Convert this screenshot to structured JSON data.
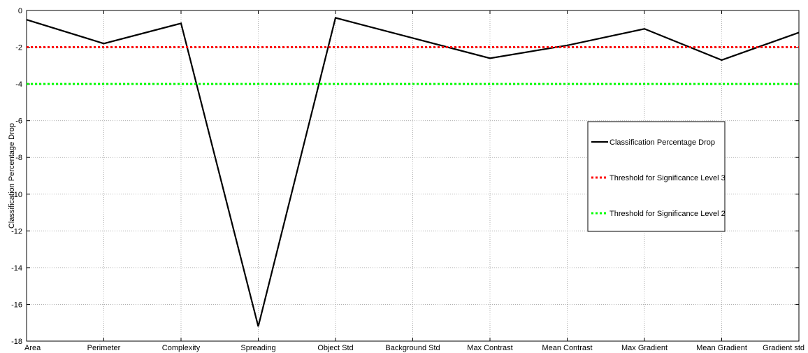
{
  "chart_data": {
    "type": "line",
    "title": "",
    "xlabel": "",
    "ylabel": "Classification Percentage Drop",
    "categories": [
      "Area",
      "Perimeter",
      "Complexity",
      "Spreading",
      "Object Std",
      "Background Std",
      "Max Contrast",
      "Mean Contrast",
      "Max Gradient",
      "Mean Gradient",
      "Gradient std"
    ],
    "ylim": [
      -18,
      0
    ],
    "yticks": [
      0,
      -2,
      -4,
      -6,
      -8,
      -10,
      -12,
      -14,
      -16,
      -18
    ],
    "grid": true,
    "legend_position": "right",
    "series": [
      {
        "name": "Classification Percentage Drop",
        "style": "solid",
        "color": "#000000",
        "values": [
          -0.5,
          -1.8,
          -0.7,
          -17.2,
          -0.4,
          -1.5,
          -2.6,
          -1.9,
          -1.0,
          -2.7,
          -1.2
        ]
      },
      {
        "name": "Threshold for Significance Level 3",
        "style": "dotted",
        "color": "#ff0000",
        "values": [
          -2,
          -2,
          -2,
          -2,
          -2,
          -2,
          -2,
          -2,
          -2,
          -2,
          -2
        ]
      },
      {
        "name": "Threshold for Significance Level 2",
        "style": "dotted",
        "color": "#00ff00",
        "values": [
          -4,
          -4,
          -4,
          -4,
          -4,
          -4,
          -4,
          -4,
          -4,
          -4,
          -4
        ]
      }
    ]
  }
}
